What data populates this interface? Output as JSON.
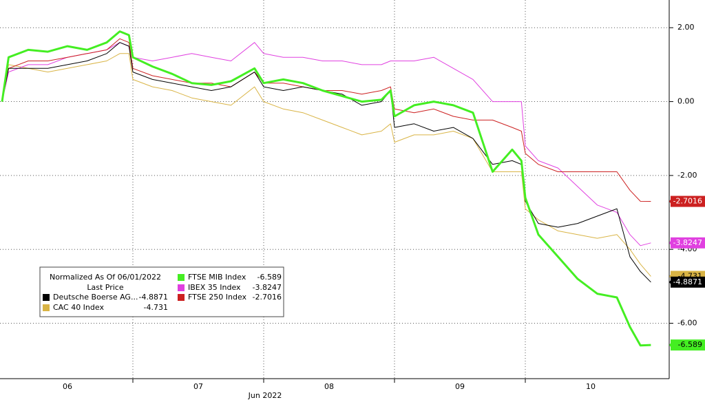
{
  "chart_data": {
    "type": "line",
    "xlabel": "Jun 2022",
    "legend_title": "Normalized As Of 06/01/2022",
    "legend_subtitle": "Last Price",
    "x": [
      0,
      0.05,
      0.2,
      0.35,
      0.5,
      0.65,
      0.8,
      0.9,
      0.97,
      1.0,
      1.15,
      1.3,
      1.45,
      1.6,
      1.75,
      1.93,
      2.0,
      2.15,
      2.3,
      2.45,
      2.6,
      2.75,
      2.9,
      2.97,
      3.0,
      3.15,
      3.3,
      3.45,
      3.6,
      3.75,
      3.9,
      3.97,
      4.0,
      4.1,
      4.25,
      4.4,
      4.55,
      4.7,
      4.8,
      4.88,
      4.96
    ],
    "xlim": [
      0,
      5.1
    ],
    "xticks": [
      {
        "value": 0.5,
        "label": "06"
      },
      {
        "value": 1.5,
        "label": "07"
      },
      {
        "value": 2.5,
        "label": "08"
      },
      {
        "value": 3.5,
        "label": "09"
      },
      {
        "value": 4.5,
        "label": "10"
      }
    ],
    "xgrid": [
      1,
      2,
      3,
      4
    ],
    "ylim": [
      -7.5,
      2.75
    ],
    "yticks": [
      {
        "value": 2,
        "label": "2.00"
      },
      {
        "value": 0,
        "label": "0.00"
      },
      {
        "value": -2,
        "label": "-2.00"
      },
      {
        "value": -4,
        "label": "-4.00"
      },
      {
        "value": -6,
        "label": "-6.00"
      }
    ],
    "grid": true,
    "series": [
      {
        "name": "Deutsche Boerse AG...",
        "color": "#000000",
        "values": [
          0,
          0.9,
          0.9,
          0.9,
          1.0,
          1.1,
          1.3,
          1.6,
          1.5,
          0.8,
          0.6,
          0.5,
          0.4,
          0.3,
          0.4,
          0.8,
          0.4,
          0.3,
          0.4,
          0.3,
          0.2,
          -0.1,
          0.0,
          0.3,
          -0.7,
          -0.6,
          -0.8,
          -0.7,
          -1.0,
          -1.7,
          -1.6,
          -1.7,
          -2.7,
          -3.3,
          -3.4,
          -3.3,
          -3.1,
          -2.9,
          -4.2,
          -4.6,
          -4.8871
        ]
      },
      {
        "name": "CAC 40 Index",
        "color": "#d9b445",
        "values": [
          0,
          1.0,
          0.9,
          0.8,
          0.9,
          1.0,
          1.1,
          1.3,
          1.3,
          0.6,
          0.4,
          0.3,
          0.1,
          0.0,
          -0.1,
          0.4,
          0.0,
          -0.2,
          -0.3,
          -0.5,
          -0.7,
          -0.9,
          -0.8,
          -0.6,
          -1.1,
          -0.9,
          -0.9,
          -0.8,
          -1.0,
          -1.9,
          -1.9,
          -1.9,
          -2.9,
          -3.2,
          -3.5,
          -3.6,
          -3.7,
          -3.6,
          -4.0,
          -4.4,
          -4.731
        ]
      },
      {
        "name": "FTSE MIB Index",
        "color": "#44ee22",
        "values": [
          0,
          1.2,
          1.4,
          1.35,
          1.5,
          1.4,
          1.6,
          1.9,
          1.8,
          1.2,
          0.95,
          0.75,
          0.5,
          0.45,
          0.55,
          0.9,
          0.5,
          0.6,
          0.5,
          0.3,
          0.15,
          0.0,
          0.05,
          0.3,
          -0.4,
          -0.1,
          0.0,
          -0.1,
          -0.3,
          -1.9,
          -1.3,
          -1.6,
          -2.6,
          -3.6,
          -4.2,
          -4.8,
          -5.2,
          -5.3,
          -6.1,
          -6.6,
          -6.589
        ]
      },
      {
        "name": "IBEX 35 Index",
        "color": "#e040e0",
        "values": [
          0,
          0.8,
          1.0,
          1.0,
          1.2,
          1.3,
          1.4,
          1.6,
          1.5,
          1.2,
          1.1,
          1.2,
          1.3,
          1.2,
          1.1,
          1.6,
          1.3,
          1.2,
          1.2,
          1.1,
          1.1,
          1.0,
          1.0,
          1.1,
          1.1,
          1.1,
          1.2,
          0.9,
          0.6,
          0.0,
          0.0,
          0.0,
          -1.2,
          -1.6,
          -1.8,
          -2.3,
          -2.8,
          -3.0,
          -3.6,
          -3.9,
          -3.8247
        ]
      },
      {
        "name": "FTSE 250 Index",
        "color": "#cc2020",
        "values": [
          0,
          0.9,
          1.1,
          1.1,
          1.2,
          1.3,
          1.4,
          1.7,
          1.6,
          0.9,
          0.7,
          0.6,
          0.5,
          0.5,
          0.4,
          0.8,
          0.5,
          0.5,
          0.4,
          0.3,
          0.3,
          0.2,
          0.3,
          0.4,
          -0.2,
          -0.3,
          -0.2,
          -0.4,
          -0.5,
          -0.5,
          -0.7,
          -0.8,
          -1.4,
          -1.7,
          -1.9,
          -1.9,
          -1.9,
          -1.9,
          -2.4,
          -2.7,
          -2.7016
        ]
      }
    ]
  }
}
